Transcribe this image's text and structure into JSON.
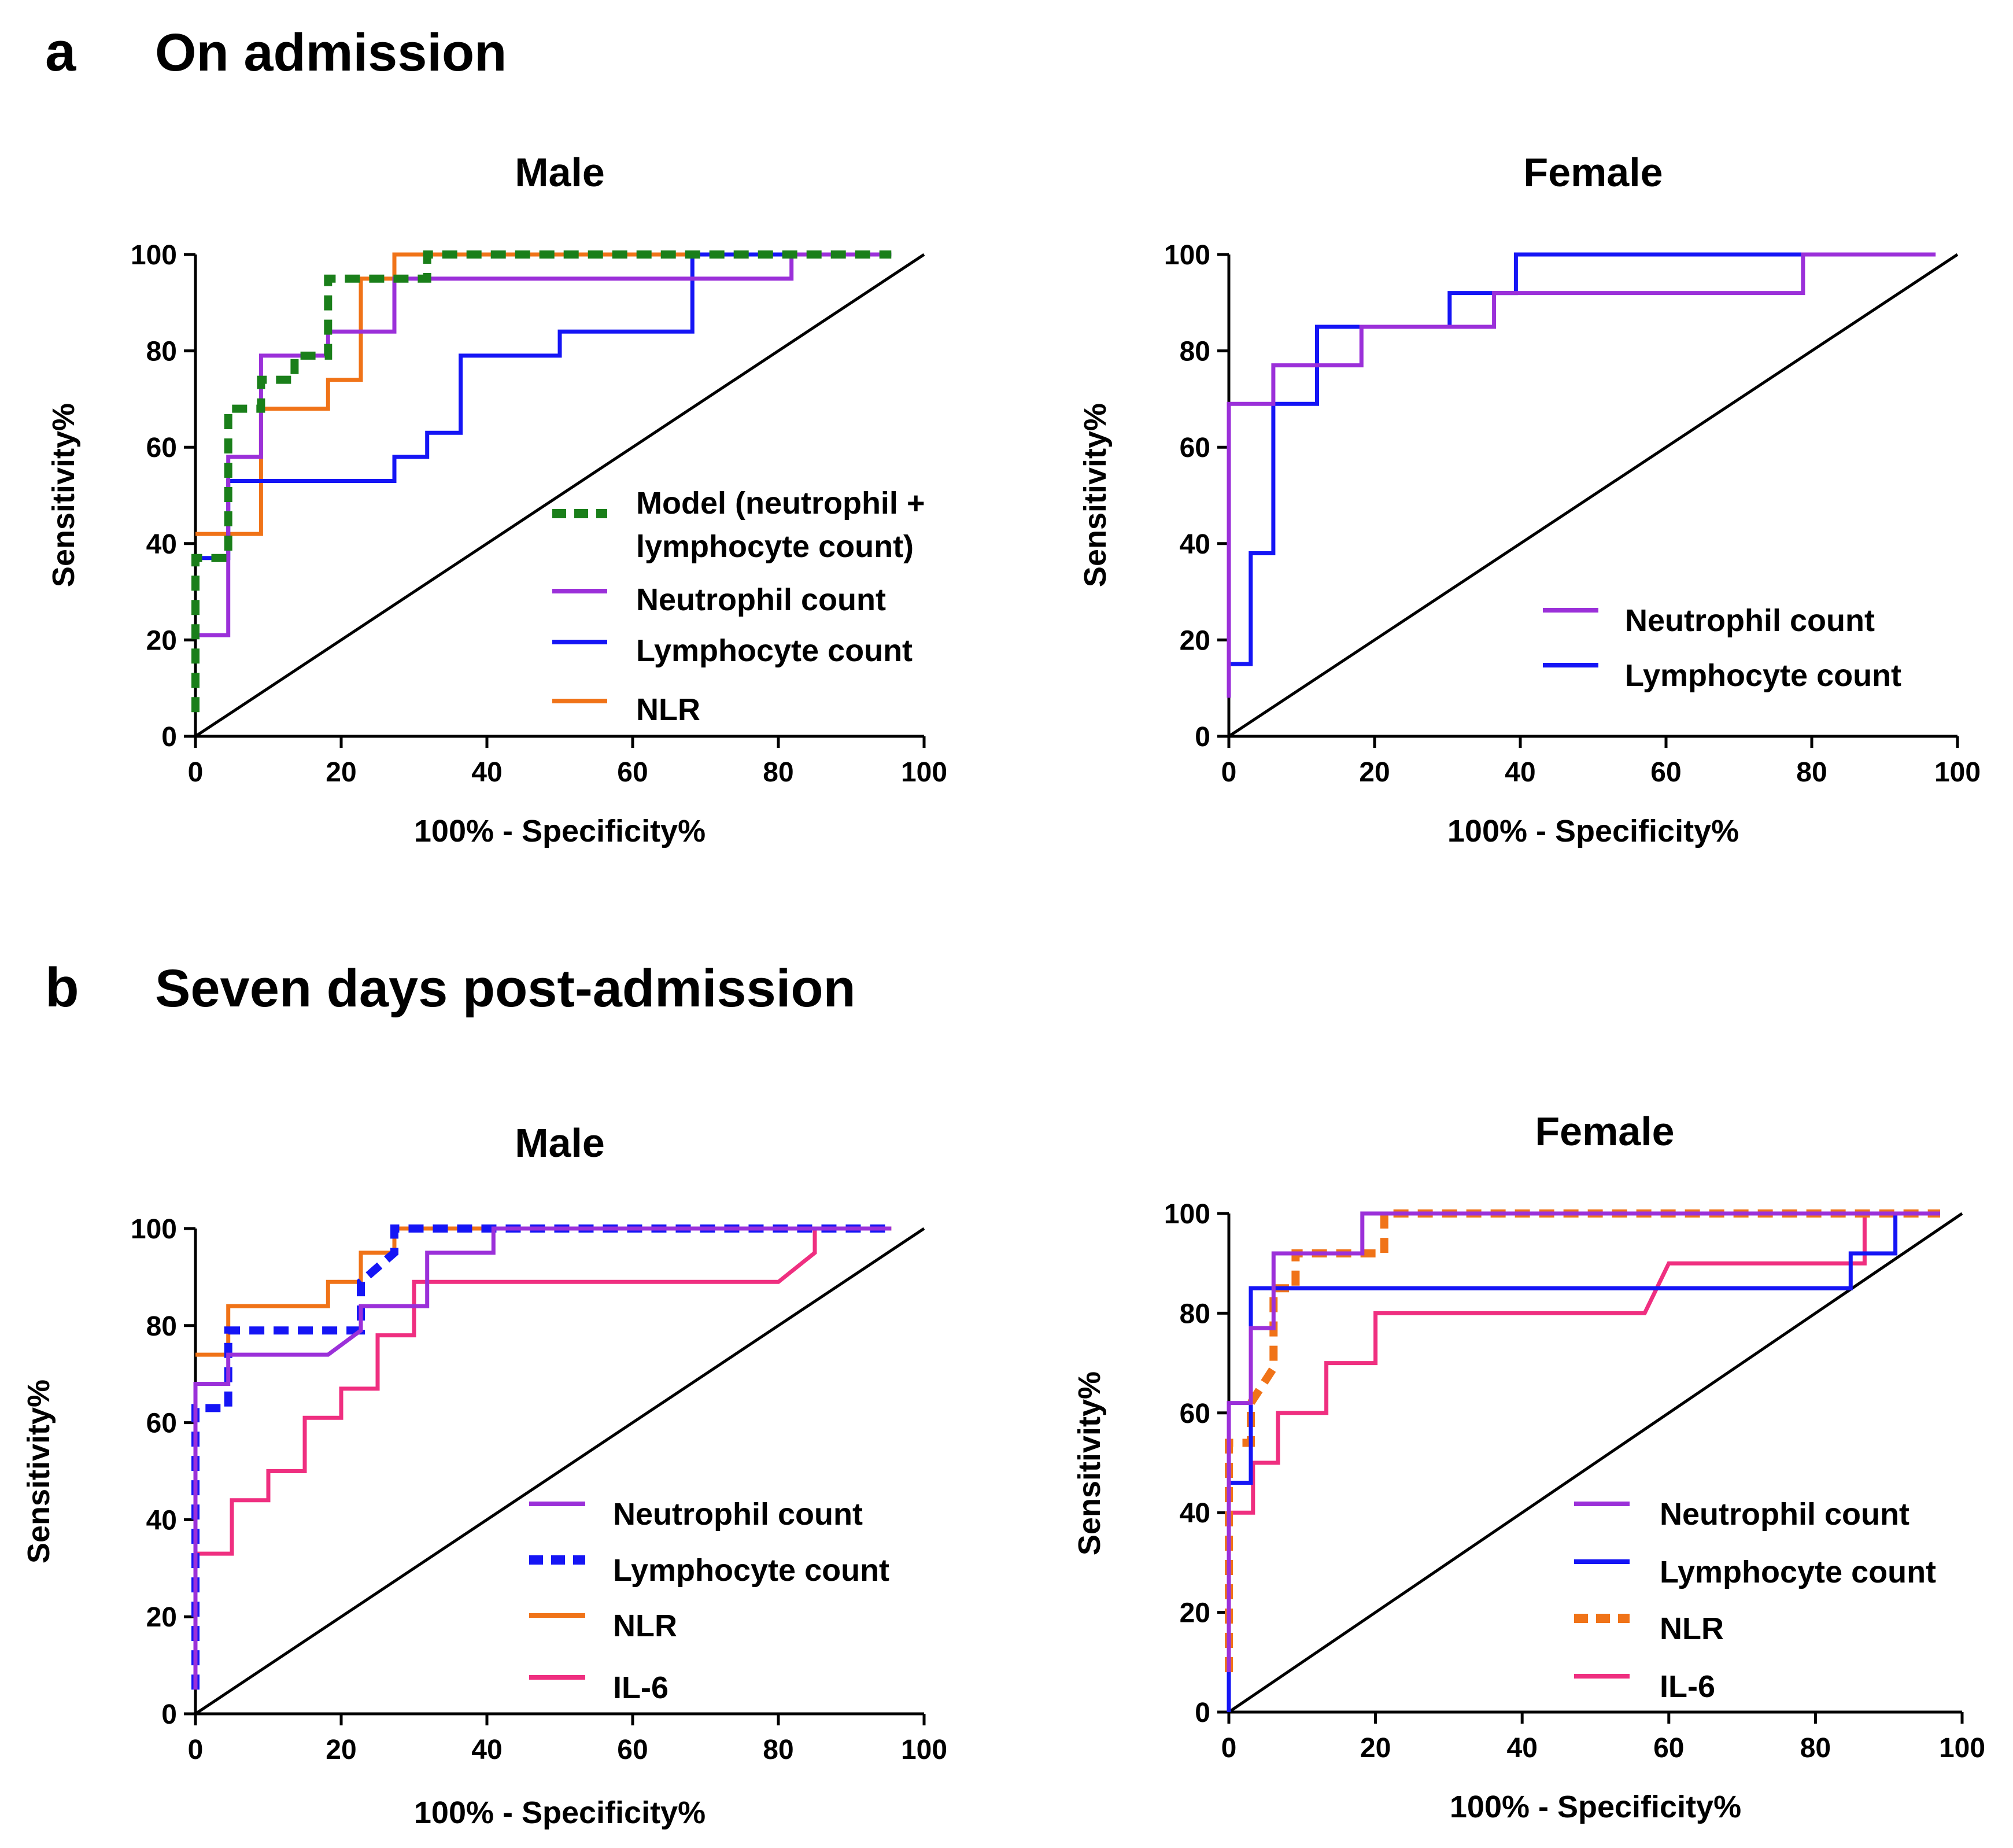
{
  "sections": {
    "a": {
      "letter": "a",
      "title": "On admission"
    },
    "b": {
      "letter": "b",
      "title": "Seven days post-admission"
    }
  },
  "chart_data": [
    {
      "type": "line",
      "id": "a-male",
      "title": "Male",
      "xlabel": "100% - Specificity%",
      "ylabel": "Sensitivity%",
      "xlim": [
        0,
        100
      ],
      "ylim": [
        0,
        100
      ],
      "xticks": [
        0,
        20,
        40,
        60,
        80,
        100
      ],
      "yticks": [
        0,
        20,
        40,
        60,
        80,
        100
      ],
      "legend": "right-center",
      "series": [
        {
          "name": "Model (neutrophil + lymphocyte count)",
          "name_lines": [
            "Model (neutrophil +",
            "lymphocyte count)"
          ],
          "color": "#1a7f1a",
          "dash": true,
          "points": [
            [
              0,
              5
            ],
            [
              0,
              37
            ],
            [
              4.5,
              37
            ],
            [
              4.5,
              68
            ],
            [
              9,
              68
            ],
            [
              9,
              74
            ],
            [
              13.6,
              74
            ],
            [
              13.6,
              79
            ],
            [
              18.2,
              79
            ],
            [
              18.2,
              95
            ],
            [
              31.8,
              95
            ],
            [
              31.8,
              100
            ],
            [
              95.5,
              100
            ]
          ]
        },
        {
          "name": "Neutrophil count",
          "name_lines": [
            "Neutrophil count"
          ],
          "color": "#9b30d9",
          "dash": false,
          "points": [
            [
              0,
              21
            ],
            [
              4.5,
              21
            ],
            [
              4.5,
              58
            ],
            [
              9,
              58
            ],
            [
              9,
              79
            ],
            [
              18.2,
              79
            ],
            [
              18.2,
              84
            ],
            [
              27.3,
              84
            ],
            [
              27.3,
              95
            ],
            [
              81.8,
              95
            ],
            [
              81.8,
              100
            ],
            [
              95.5,
              100
            ]
          ]
        },
        {
          "name": "Lymphocyte count",
          "name_lines": [
            "Lymphocyte count"
          ],
          "color": "#1515f5",
          "dash": false,
          "points": [
            [
              0,
              37
            ],
            [
              4.5,
              37
            ],
            [
              4.5,
              53
            ],
            [
              27.3,
              53
            ],
            [
              27.3,
              58
            ],
            [
              31.8,
              58
            ],
            [
              31.8,
              63
            ],
            [
              36.4,
              63
            ],
            [
              36.4,
              79
            ],
            [
              50,
              79
            ],
            [
              50,
              84
            ],
            [
              68.2,
              84
            ],
            [
              68.2,
              100
            ],
            [
              95.5,
              100
            ]
          ]
        },
        {
          "name": "NLR",
          "name_lines": [
            "NLR"
          ],
          "color": "#f07318",
          "dash": false,
          "points": [
            [
              0,
              42
            ],
            [
              9,
              42
            ],
            [
              9,
              68
            ],
            [
              18.2,
              68
            ],
            [
              18.2,
              74
            ],
            [
              22.7,
              74
            ],
            [
              22.7,
              95
            ],
            [
              27.3,
              95
            ],
            [
              27.3,
              100
            ],
            [
              95.5,
              100
            ]
          ]
        }
      ]
    },
    {
      "type": "line",
      "id": "a-female",
      "title": "Female",
      "xlabel": "100% - Specificity%",
      "ylabel": "Sensitivity%",
      "xlim": [
        0,
        100
      ],
      "ylim": [
        0,
        100
      ],
      "xticks": [
        0,
        20,
        40,
        60,
        80,
        100
      ],
      "yticks": [
        0,
        20,
        40,
        60,
        80,
        100
      ],
      "legend": "bottom-right",
      "series": [
        {
          "name": "Neutrophil count",
          "name_lines": [
            "Neutrophil count"
          ],
          "color": "#9b30d9",
          "dash": false,
          "points": [
            [
              0,
              8
            ],
            [
              0,
              69
            ],
            [
              6.1,
              69
            ],
            [
              6.1,
              77
            ],
            [
              18.2,
              77
            ],
            [
              18.2,
              85
            ],
            [
              36.4,
              85
            ],
            [
              36.4,
              92
            ],
            [
              78.8,
              92
            ],
            [
              78.8,
              100
            ],
            [
              97,
              100
            ]
          ]
        },
        {
          "name": "Lymphocyte count",
          "name_lines": [
            "Lymphocyte count"
          ],
          "color": "#1515f5",
          "dash": false,
          "points": [
            [
              0,
              15
            ],
            [
              3,
              15
            ],
            [
              3,
              38
            ],
            [
              6.1,
              38
            ],
            [
              6.1,
              69
            ],
            [
              12.1,
              69
            ],
            [
              12.1,
              85
            ],
            [
              30.3,
              85
            ],
            [
              30.3,
              92
            ],
            [
              39.4,
              92
            ],
            [
              39.4,
              100
            ],
            [
              78.8,
              100
            ]
          ]
        }
      ]
    },
    {
      "type": "line",
      "id": "b-male",
      "title": "Male",
      "xlabel": "100% - Specificity%",
      "ylabel": "Sensitivity%",
      "xlim": [
        0,
        100
      ],
      "ylim": [
        0,
        100
      ],
      "xticks": [
        0,
        20,
        40,
        60,
        80,
        100
      ],
      "yticks": [
        0,
        20,
        40,
        60,
        80,
        100
      ],
      "legend": "bottom-right",
      "series": [
        {
          "name": "Neutrophil count",
          "name_lines": [
            "Neutrophil count"
          ],
          "color": "#9b30d9",
          "dash": false,
          "points": [
            [
              0,
              5
            ],
            [
              0,
              68
            ],
            [
              4.5,
              68
            ],
            [
              4.5,
              74
            ],
            [
              18.2,
              74
            ],
            [
              22.7,
              79
            ],
            [
              22.7,
              84
            ],
            [
              31.8,
              84
            ],
            [
              31.8,
              95
            ],
            [
              40.9,
              95
            ],
            [
              40.9,
              100
            ],
            [
              95.5,
              100
            ]
          ]
        },
        {
          "name": "Lymphocyte count",
          "name_lines": [
            "Lymphocyte count"
          ],
          "color": "#1515f5",
          "dash": true,
          "points": [
            [
              0,
              5
            ],
            [
              0,
              63
            ],
            [
              4.5,
              63
            ],
            [
              4.5,
              79
            ],
            [
              22.7,
              79
            ],
            [
              22.7,
              89
            ],
            [
              27.3,
              95
            ],
            [
              27.3,
              100
            ],
            [
              95.5,
              100
            ]
          ]
        },
        {
          "name": "NLR",
          "name_lines": [
            "NLR"
          ],
          "color": "#f07318",
          "dash": false,
          "points": [
            [
              0,
              74
            ],
            [
              4.5,
              74
            ],
            [
              4.5,
              84
            ],
            [
              18.2,
              84
            ],
            [
              18.2,
              89
            ],
            [
              22.7,
              89
            ],
            [
              22.7,
              95
            ],
            [
              27.3,
              95
            ],
            [
              27.3,
              100
            ],
            [
              95.5,
              100
            ]
          ]
        },
        {
          "name": "IL-6",
          "name_lines": [
            "IL-6"
          ],
          "color": "#ef2f80",
          "dash": false,
          "points": [
            [
              0,
              33
            ],
            [
              5,
              33
            ],
            [
              5,
              44
            ],
            [
              10,
              44
            ],
            [
              10,
              50
            ],
            [
              15,
              50
            ],
            [
              15,
              61
            ],
            [
              20,
              61
            ],
            [
              20,
              67
            ],
            [
              25,
              67
            ],
            [
              25,
              78
            ],
            [
              30,
              78
            ],
            [
              30,
              89
            ],
            [
              80,
              89
            ],
            [
              85,
              95
            ],
            [
              85,
              100
            ],
            [
              95,
              100
            ]
          ]
        }
      ]
    },
    {
      "type": "line",
      "id": "b-female",
      "title": "Female",
      "xlabel": "100% - Specificity%",
      "ylabel": "Sensitivity%",
      "xlim": [
        0,
        100
      ],
      "ylim": [
        0,
        100
      ],
      "xticks": [
        0,
        20,
        40,
        60,
        80,
        100
      ],
      "yticks": [
        0,
        20,
        40,
        60,
        80,
        100
      ],
      "legend": "bottom-right",
      "series": [
        {
          "name": "Neutrophil count",
          "name_lines": [
            "Neutrophil count"
          ],
          "color": "#9b30d9",
          "dash": false,
          "points": [
            [
              0,
              8
            ],
            [
              0,
              62
            ],
            [
              3,
              62
            ],
            [
              3,
              77
            ],
            [
              6.1,
              77
            ],
            [
              6.1,
              92
            ],
            [
              18.2,
              92
            ],
            [
              18.2,
              100
            ],
            [
              97,
              100
            ]
          ]
        },
        {
          "name": "Lymphocyte count",
          "name_lines": [
            "Lymphocyte count"
          ],
          "color": "#1515f5",
          "dash": false,
          "points": [
            [
              0,
              0
            ],
            [
              0,
              46
            ],
            [
              3,
              46
            ],
            [
              3,
              85
            ],
            [
              84.8,
              85
            ],
            [
              84.8,
              92
            ],
            [
              90.9,
              92
            ],
            [
              90.9,
              100
            ],
            [
              97,
              100
            ]
          ]
        },
        {
          "name": "NLR",
          "name_lines": [
            "NLR"
          ],
          "color": "#f07318",
          "dash": true,
          "points": [
            [
              0,
              8
            ],
            [
              0,
              54
            ],
            [
              3,
              54
            ],
            [
              3,
              62
            ],
            [
              6.1,
              69
            ],
            [
              6.1,
              85
            ],
            [
              9.1,
              85
            ],
            [
              9.1,
              92
            ],
            [
              21.2,
              92
            ],
            [
              21.2,
              100
            ],
            [
              97,
              100
            ]
          ]
        },
        {
          "name": "IL-6",
          "name_lines": [
            "IL-6"
          ],
          "color": "#ef2f80",
          "dash": false,
          "points": [
            [
              0,
              40
            ],
            [
              3.3,
              40
            ],
            [
              3.3,
              50
            ],
            [
              6.7,
              50
            ],
            [
              6.7,
              60
            ],
            [
              13.3,
              60
            ],
            [
              13.3,
              70
            ],
            [
              20,
              70
            ],
            [
              20,
              80
            ],
            [
              56.7,
              80
            ],
            [
              60,
              90
            ],
            [
              86.7,
              90
            ],
            [
              86.7,
              100
            ],
            [
              96.7,
              100
            ]
          ]
        }
      ]
    }
  ]
}
